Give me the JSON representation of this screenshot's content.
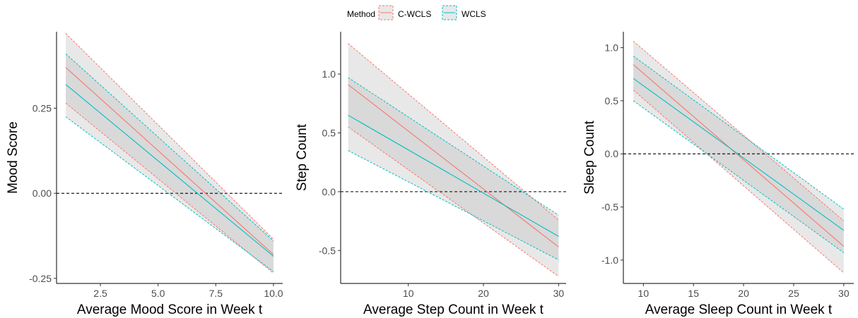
{
  "legend": {
    "title": "Method",
    "items": [
      {
        "label": "C-WCLS",
        "color": "#F8766D"
      },
      {
        "label": "WCLS",
        "color": "#00BFC4"
      }
    ]
  },
  "colors": {
    "c_wcls": "#F8766D",
    "wcls": "#00BFC4",
    "ci_fill": "#BEBEBE",
    "reference_line": "#000000"
  },
  "chart_data": [
    {
      "type": "line",
      "xlabel": "Average Mood Score in Week t",
      "ylabel": "Mood Score",
      "xlim": [
        0.6,
        10.4
      ],
      "ylim": [
        -0.265,
        0.475
      ],
      "x_ticks": [
        2.5,
        5.0,
        7.5,
        10.0
      ],
      "x_tick_labels": [
        "2.5",
        "5.0",
        "7.5",
        "10.0"
      ],
      "y_ticks": [
        -0.25,
        0.0,
        0.25
      ],
      "y_tick_labels": [
        "-0.25",
        "0.00",
        "0.25"
      ],
      "reference_line_y": 0,
      "grid": false,
      "legend_position": "top",
      "x": [
        1,
        10
      ],
      "series": [
        {
          "name": "C-WCLS",
          "estimate": [
            0.37,
            -0.18
          ],
          "ci_lower": [
            0.265,
            -0.235
          ],
          "ci_upper": [
            0.47,
            -0.135
          ]
        },
        {
          "name": "WCLS",
          "estimate": [
            0.32,
            -0.185
          ],
          "ci_lower": [
            0.225,
            -0.23
          ],
          "ci_upper": [
            0.41,
            -0.14
          ]
        }
      ]
    },
    {
      "type": "line",
      "xlabel": "Average Step Count in Week t",
      "ylabel": "Step Count",
      "xlim": [
        1.0,
        31.0
      ],
      "ylim": [
        -0.78,
        1.36
      ],
      "x_ticks": [
        10,
        20,
        30
      ],
      "x_tick_labels": [
        "10",
        "20",
        "30"
      ],
      "y_ticks": [
        -0.5,
        0.0,
        0.5,
        1.0
      ],
      "y_tick_labels": [
        "-0.5",
        "0.0",
        "0.5",
        "1.0"
      ],
      "reference_line_y": 0,
      "grid": false,
      "legend_position": "top",
      "x": [
        2,
        30
      ],
      "series": [
        {
          "name": "C-WCLS",
          "estimate": [
            0.91,
            -0.47
          ],
          "ci_lower": [
            0.55,
            -0.72
          ],
          "ci_upper": [
            1.26,
            -0.24
          ]
        },
        {
          "name": "WCLS",
          "estimate": [
            0.65,
            -0.38
          ],
          "ci_lower": [
            0.35,
            -0.58
          ],
          "ci_upper": [
            0.97,
            -0.2
          ]
        }
      ]
    },
    {
      "type": "line",
      "xlabel": "Average Sleep Count in Week t",
      "ylabel": "Sleep Count",
      "xlim": [
        8.0,
        31.0
      ],
      "ylim": [
        -1.22,
        1.15
      ],
      "x_ticks": [
        10,
        15,
        20,
        25,
        30
      ],
      "x_tick_labels": [
        "10",
        "15",
        "20",
        "25",
        "30"
      ],
      "y_ticks": [
        -1.0,
        -0.5,
        0.0,
        0.5,
        1.0
      ],
      "y_tick_labels": [
        "-1.0",
        "-0.5",
        "0.0",
        "0.5",
        "1.0"
      ],
      "reference_line_y": 0,
      "grid": false,
      "legend_position": "top",
      "x": [
        9,
        30
      ],
      "series": [
        {
          "name": "C-WCLS",
          "estimate": [
            0.84,
            -0.87
          ],
          "ci_lower": [
            0.6,
            -1.12
          ],
          "ci_upper": [
            1.06,
            -0.63
          ]
        },
        {
          "name": "WCLS",
          "estimate": [
            0.71,
            -0.72
          ],
          "ci_lower": [
            0.5,
            -0.93
          ],
          "ci_upper": [
            0.92,
            -0.52
          ]
        }
      ]
    }
  ]
}
